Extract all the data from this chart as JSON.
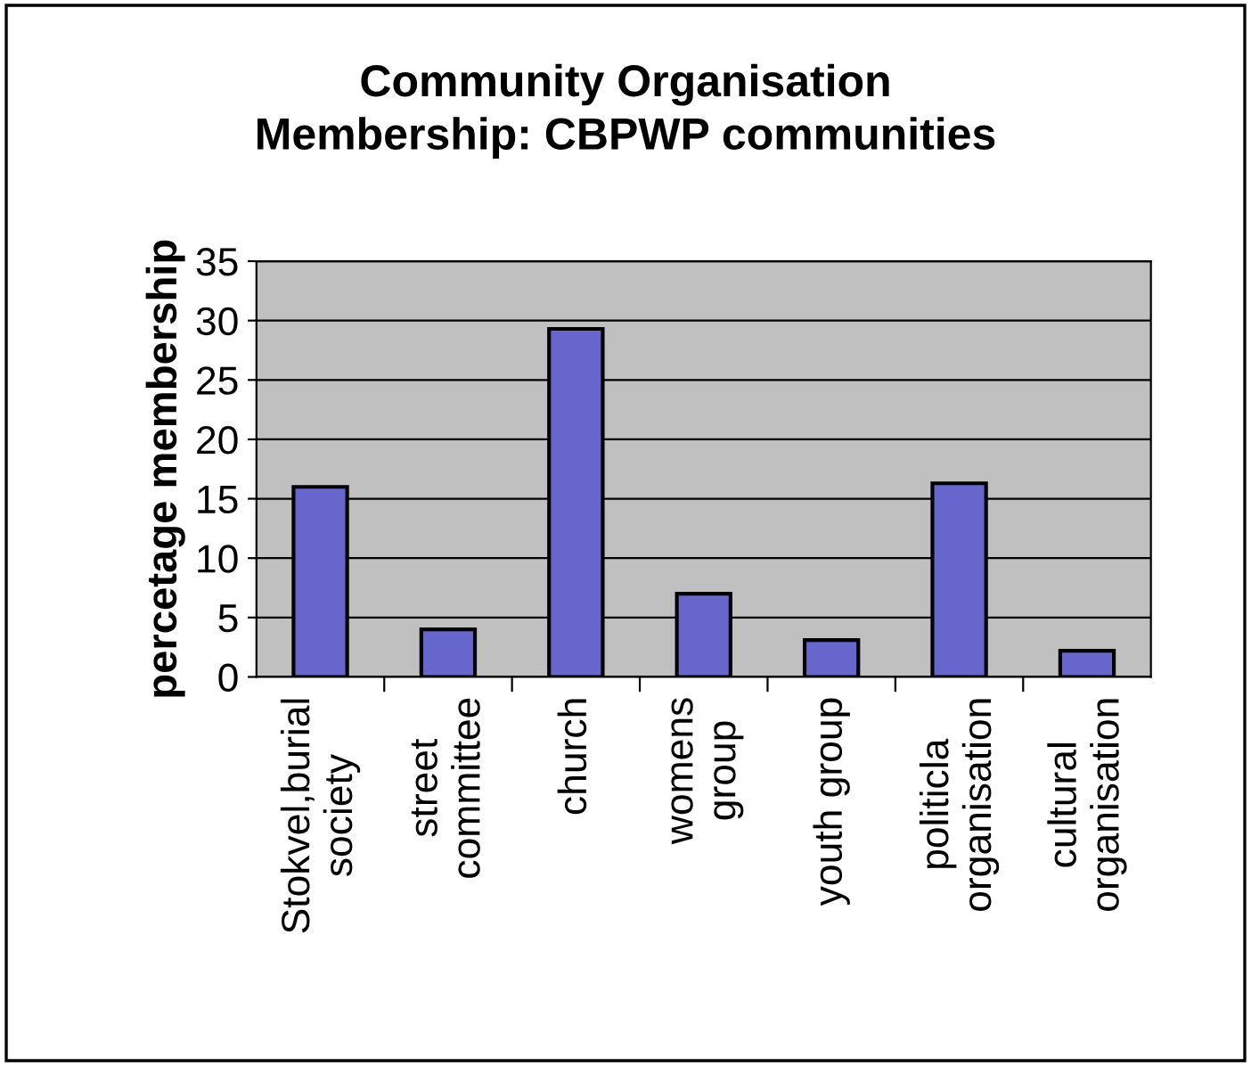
{
  "chart_data": {
    "type": "bar",
    "title": "Community Organisation\nMembership: CBPWP communities",
    "ylabel": "percetage membership",
    "categories": [
      "Stokvel,burial\nsociety",
      "street\ncommittee",
      "church",
      "womens\ngroup",
      "youth group",
      "politicla\norganisation",
      "cultural\norganisation"
    ],
    "values": [
      16,
      4,
      29.3,
      7,
      3.1,
      16.3,
      2.2
    ],
    "color": "#6666cc",
    "ylim": [
      0,
      35
    ],
    "yticks": [
      0,
      5,
      10,
      15,
      20,
      25,
      30,
      35
    ],
    "grid": "y"
  }
}
